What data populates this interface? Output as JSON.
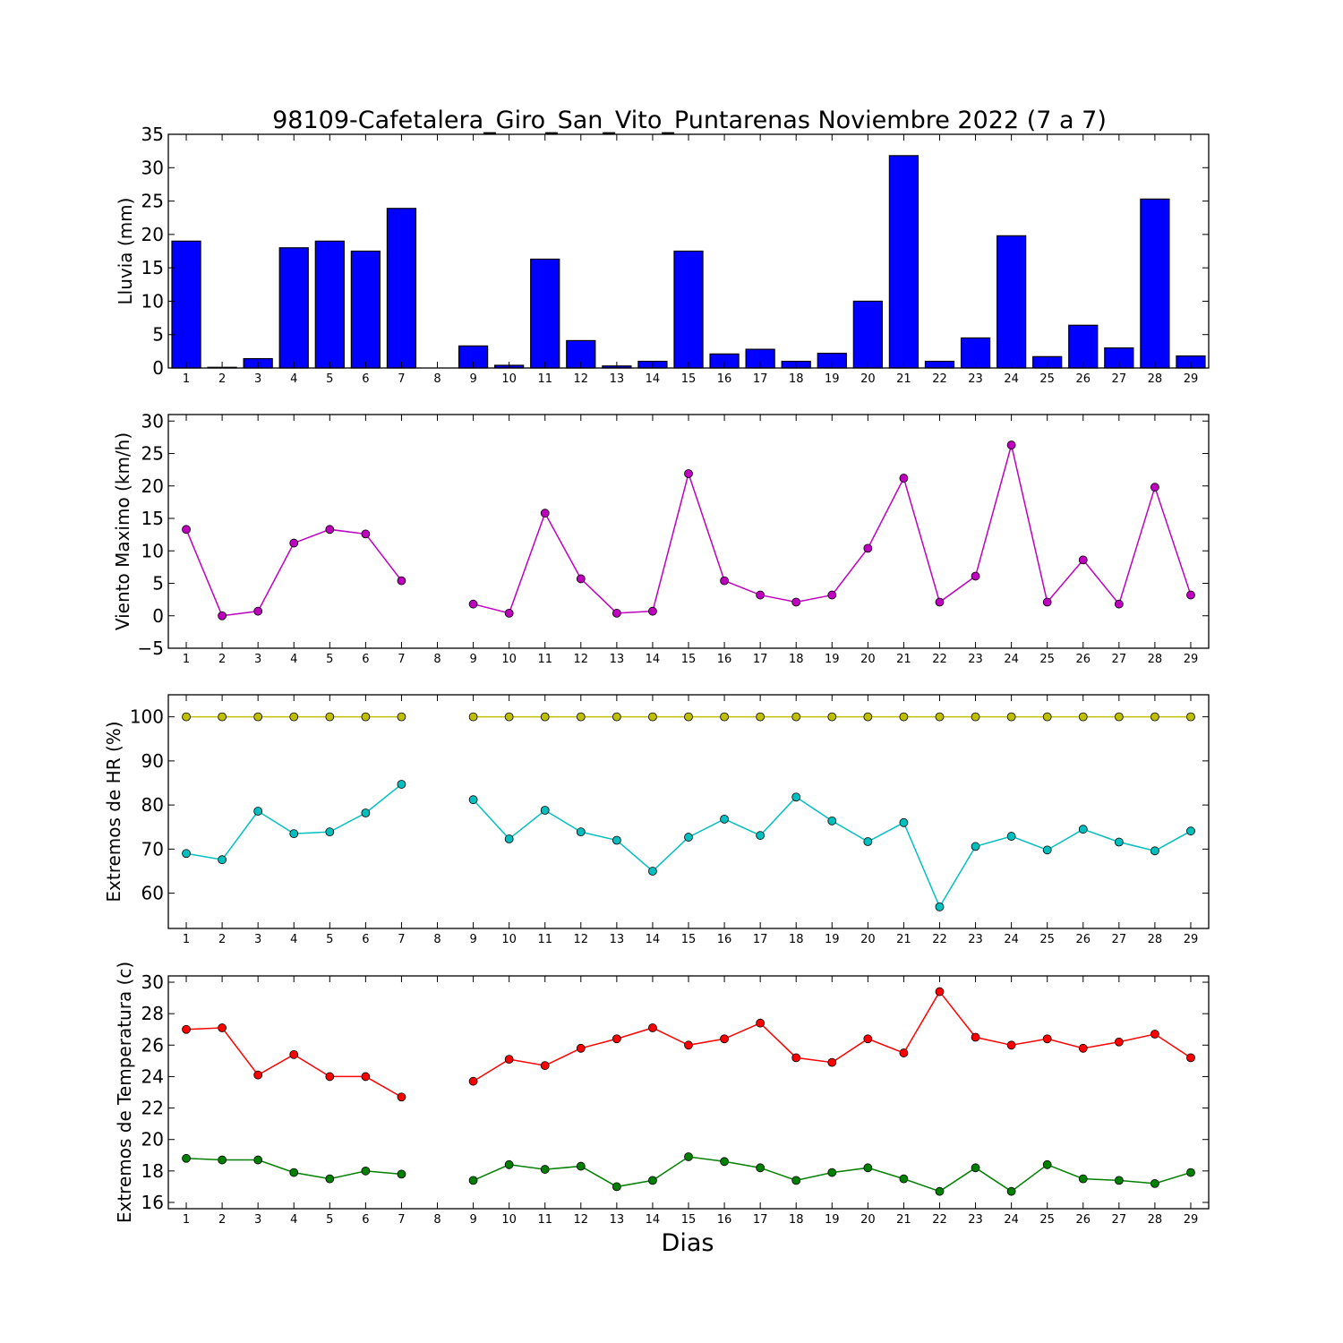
{
  "figure": {
    "title": "98109-Cafetalera_Giro_San_Vito_Puntarenas Noviembre 2022  (7 a 7)",
    "xlabel": "Dias"
  },
  "chart_data": [
    {
      "type": "bar",
      "ylabel": "Lluvia (mm)",
      "ylim": [
        0,
        35
      ],
      "yticks": [
        0,
        5,
        10,
        15,
        20,
        25,
        30,
        35
      ],
      "categories": [
        1,
        2,
        3,
        4,
        5,
        6,
        7,
        8,
        9,
        10,
        11,
        12,
        13,
        14,
        15,
        16,
        17,
        18,
        19,
        20,
        21,
        22,
        23,
        24,
        25,
        26,
        27,
        28,
        29
      ],
      "series": [
        {
          "color": "#0000ff",
          "values": [
            19.0,
            0.1,
            1.4,
            18.0,
            19.0,
            17.5,
            23.9,
            0.0,
            3.3,
            0.4,
            16.3,
            4.1,
            0.3,
            1.0,
            17.5,
            2.1,
            2.8,
            1.0,
            2.2,
            10.0,
            31.8,
            1.0,
            4.5,
            19.8,
            1.7,
            6.4,
            3.0,
            25.3,
            1.8
          ]
        }
      ]
    },
    {
      "type": "line",
      "ylabel": "Viento Maximo (km/h)",
      "ylim": [
        -5,
        31
      ],
      "yticks": [
        -5,
        0,
        5,
        10,
        15,
        20,
        25,
        30
      ],
      "x": [
        1,
        2,
        3,
        4,
        5,
        6,
        7,
        8,
        9,
        10,
        11,
        12,
        13,
        14,
        15,
        16,
        17,
        18,
        19,
        20,
        21,
        22,
        23,
        24,
        25,
        26,
        27,
        28,
        29
      ],
      "series": [
        {
          "color": "#bf00bf",
          "values": [
            13.3,
            0.0,
            0.7,
            11.2,
            13.3,
            12.6,
            5.4,
            null,
            1.8,
            0.4,
            15.8,
            5.7,
            0.4,
            0.7,
            21.9,
            5.4,
            3.2,
            2.1,
            3.2,
            10.4,
            21.2,
            2.1,
            6.1,
            26.3,
            2.1,
            8.6,
            1.8,
            19.8,
            3.2
          ]
        }
      ]
    },
    {
      "type": "line",
      "ylabel": "Extremos de HR (%)",
      "ylim": [
        52,
        105
      ],
      "yticks": [
        60,
        70,
        80,
        90,
        100
      ],
      "x": [
        1,
        2,
        3,
        4,
        5,
        6,
        7,
        8,
        9,
        10,
        11,
        12,
        13,
        14,
        15,
        16,
        17,
        18,
        19,
        20,
        21,
        22,
        23,
        24,
        25,
        26,
        27,
        28,
        29
      ],
      "series": [
        {
          "color": "#bfbf00",
          "values": [
            100,
            100,
            100,
            100,
            100,
            100,
            100,
            null,
            100,
            100,
            100,
            100,
            100,
            100,
            100,
            100,
            100,
            100,
            100,
            100,
            100,
            100,
            100,
            100,
            100,
            100,
            100,
            100,
            100
          ]
        },
        {
          "color": "#00bfbf",
          "values": [
            69.0,
            67.6,
            78.6,
            73.5,
            73.9,
            78.2,
            84.7,
            null,
            81.2,
            72.3,
            78.8,
            73.9,
            72.0,
            65.0,
            72.7,
            76.8,
            73.1,
            81.8,
            76.4,
            71.7,
            76.0,
            56.9,
            70.6,
            72.9,
            69.8,
            74.5,
            71.6,
            69.6,
            74.1
          ]
        }
      ]
    },
    {
      "type": "line",
      "ylabel": "Extremos de Temperatura (c)",
      "ylim": [
        15.6,
        30.4
      ],
      "yticks": [
        16,
        18,
        20,
        22,
        24,
        26,
        28,
        30
      ],
      "x": [
        1,
        2,
        3,
        4,
        5,
        6,
        7,
        8,
        9,
        10,
        11,
        12,
        13,
        14,
        15,
        16,
        17,
        18,
        19,
        20,
        21,
        22,
        23,
        24,
        25,
        26,
        27,
        28,
        29
      ],
      "series": [
        {
          "color": "#ff0000",
          "values": [
            27.0,
            27.1,
            24.1,
            25.4,
            24.0,
            24.0,
            22.7,
            null,
            23.7,
            25.1,
            24.7,
            25.8,
            26.4,
            27.1,
            26.0,
            26.4,
            27.4,
            25.2,
            24.9,
            26.4,
            25.5,
            29.4,
            26.5,
            26.0,
            26.4,
            25.8,
            26.2,
            26.7,
            25.2
          ]
        },
        {
          "color": "#008000",
          "values": [
            18.8,
            18.7,
            18.7,
            17.9,
            17.5,
            18.0,
            17.8,
            null,
            17.4,
            18.4,
            18.1,
            18.3,
            17.0,
            17.4,
            18.9,
            18.6,
            18.2,
            17.4,
            17.9,
            18.2,
            17.5,
            16.7,
            18.2,
            16.7,
            18.4,
            17.5,
            17.4,
            17.2,
            17.9
          ]
        }
      ]
    }
  ]
}
